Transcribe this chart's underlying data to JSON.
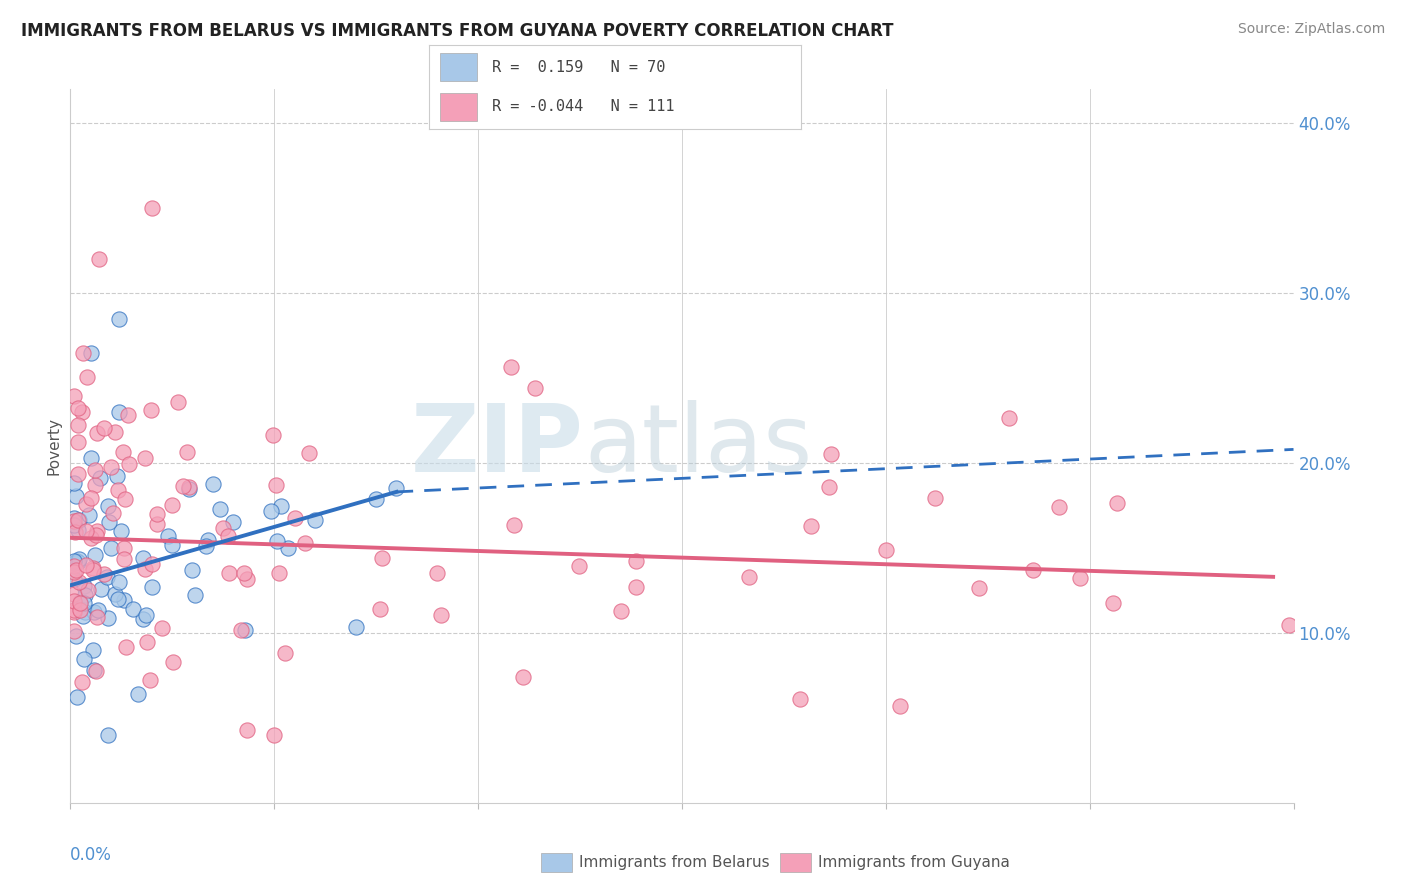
{
  "title": "IMMIGRANTS FROM BELARUS VS IMMIGRANTS FROM GUYANA POVERTY CORRELATION CHART",
  "source": "Source: ZipAtlas.com",
  "ylabel": "Poverty",
  "xmin": 0.0,
  "xmax": 0.3,
  "ymin": 0.0,
  "ymax": 0.42,
  "yticks": [
    0.1,
    0.2,
    0.3,
    0.4
  ],
  "ytick_labels": [
    "10.0%",
    "20.0%",
    "30.0%",
    "40.0%"
  ],
  "xticks": [
    0.0,
    0.05,
    0.1,
    0.15,
    0.2,
    0.25,
    0.3
  ],
  "watermark_zip": "ZIP",
  "watermark_atlas": "atlas",
  "color_belarus": "#A8C8E8",
  "color_guyana": "#F4A0B8",
  "color_line_belarus": "#3070C0",
  "color_line_guyana": "#E06080",
  "belarus_R": 0.159,
  "belarus_N": 70,
  "guyana_R": -0.044,
  "guyana_N": 111,
  "trendline_belarus_x0": 0.0,
  "trendline_belarus_y0": 0.128,
  "trendline_belarus_x1": 0.08,
  "trendline_belarus_y1": 0.183,
  "trendline_belarus_xdash": 0.3,
  "trendline_belarus_ydash": 0.208,
  "trendline_guyana_x0": 0.0,
  "trendline_guyana_y0": 0.156,
  "trendline_guyana_x1": 0.295,
  "trendline_guyana_y1": 0.133
}
